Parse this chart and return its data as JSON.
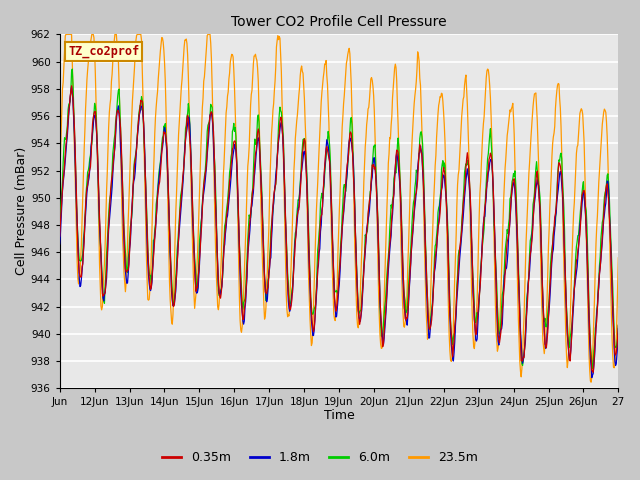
{
  "title": "Tower CO2 Profile Cell Pressure",
  "xlabel": "Time",
  "ylabel": "Cell Pressure (mBar)",
  "ylim": [
    936,
    962
  ],
  "yticks": [
    936,
    938,
    940,
    942,
    944,
    946,
    948,
    950,
    952,
    954,
    956,
    958,
    960,
    962
  ],
  "fig_facecolor": "#c8c8c8",
  "plot_facecolor": "#e8e8e8",
  "legend_label": "TZ_co2prof",
  "legend_box_color": "#ffffcc",
  "legend_box_edge": "#cc8800",
  "lines": [
    "0.35m",
    "1.8m",
    "6.0m",
    "23.5m"
  ],
  "line_colors": [
    "#cc0000",
    "#0000cc",
    "#00cc00",
    "#ff9900"
  ],
  "x_tick_labels": [
    "Jun",
    "12Jun",
    "13Jun",
    "14Jun",
    "15Jun",
    "16Jun",
    "17Jun",
    "18Jun",
    "19Jun",
    "20Jun",
    "21Jun",
    "22Jun",
    "23Jun",
    "24Jun",
    "25Jun",
    "26Jun",
    "27"
  ],
  "num_points": 800
}
